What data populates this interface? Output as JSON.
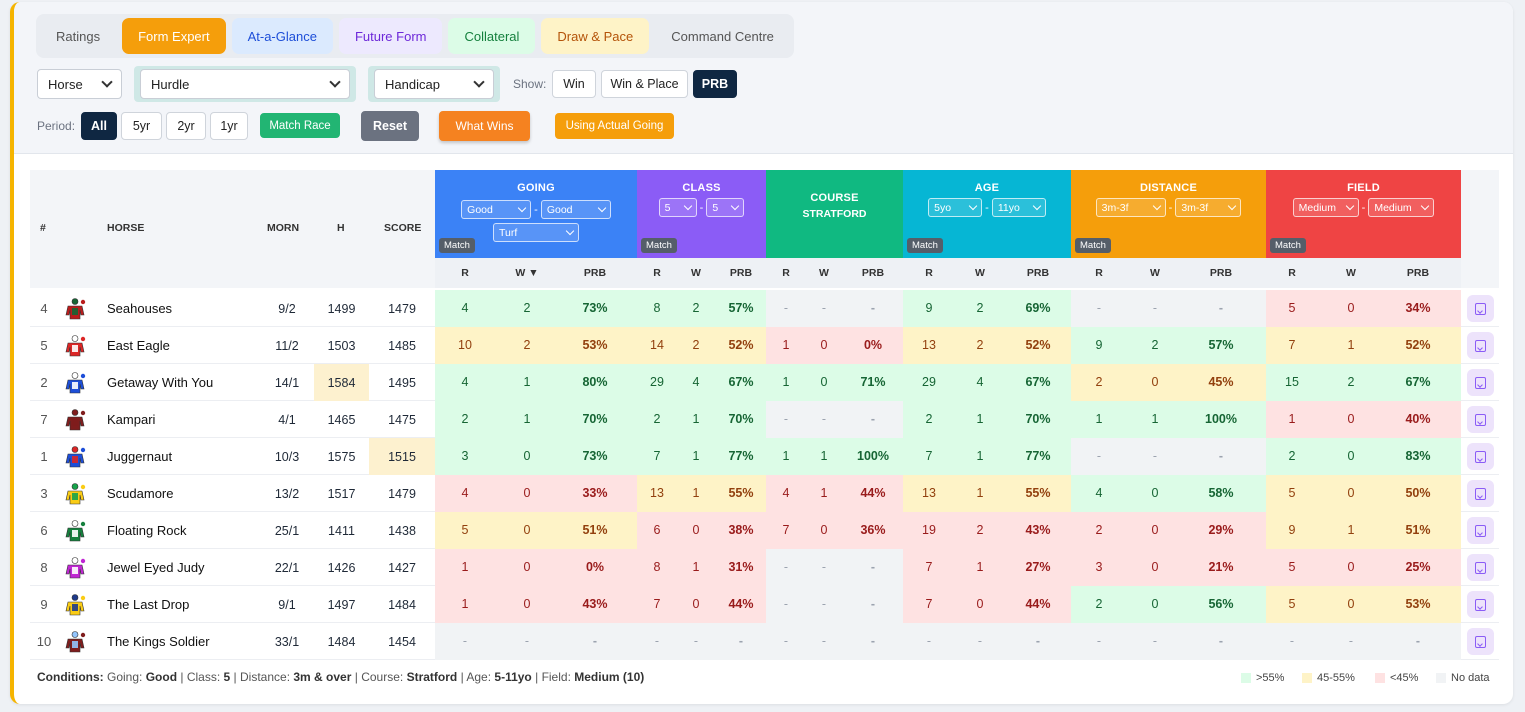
{
  "tabs": [
    "Ratings",
    "Form Expert",
    "At-a-Glance",
    "Future Form",
    "Collateral",
    "Draw & Pace",
    "Command Centre"
  ],
  "filters": {
    "subject": "Horse",
    "type": "Hurdle",
    "race": "Handicap",
    "show_label": "Show:",
    "show": [
      "Win",
      "Win & Place",
      "PRB"
    ],
    "period_label": "Period:",
    "periods": [
      "All",
      "5yr",
      "2yr",
      "1yr"
    ],
    "match_race": "Match Race",
    "reset": "Reset",
    "what_wins": "What Wins",
    "actual_going": "Using Actual Going"
  },
  "headers": {
    "num": "#",
    "horse": "HORSE",
    "morn": "MORN",
    "h": "H",
    "score": "SCORE",
    "r": "R",
    "w": "W",
    "w_sorted": "W ▼",
    "prb": "PRB",
    "match": "Match"
  },
  "groups": {
    "going": {
      "title": "GOING",
      "from": "Good",
      "to": "Good",
      "surface": "Turf",
      "color": "#3b82f6"
    },
    "class": {
      "title": "CLASS",
      "from": "5",
      "to": "5",
      "color": "#8b5cf6"
    },
    "course": {
      "title": "COURSE",
      "sub": "STRATFORD",
      "color": "#10b981"
    },
    "age": {
      "title": "AGE",
      "from": "5yo",
      "to": "11yo",
      "color": "#06b6d4"
    },
    "distance": {
      "title": "DISTANCE",
      "from": "3m-3f",
      "to": "3m-3f",
      "color": "#f59e0b"
    },
    "field": {
      "title": "FIELD",
      "from": "Medium",
      "to": "Medium",
      "color": "#ef4444"
    }
  },
  "rows": [
    {
      "num": "4",
      "horse": "Seahouses",
      "morn": "9/2",
      "h": "1499",
      "score": "1479",
      "silk": [
        "#b91c1c",
        "#166534"
      ],
      "going": [
        "4",
        "2",
        "73%"
      ],
      "class": [
        "8",
        "2",
        "57%"
      ],
      "course": [
        "-",
        "-",
        "-"
      ],
      "age": [
        "9",
        "2",
        "69%"
      ],
      "distance": [
        "-",
        "-",
        "-"
      ],
      "field": [
        "5",
        "0",
        "34%"
      ]
    },
    {
      "num": "5",
      "horse": "East Eagle",
      "morn": "11/2",
      "h": "1503",
      "score": "1485",
      "silk": [
        "#dc2626",
        "#ffffff"
      ],
      "going": [
        "10",
        "2",
        "53%"
      ],
      "class": [
        "14",
        "2",
        "52%"
      ],
      "course": [
        "1",
        "0",
        "0%"
      ],
      "age": [
        "13",
        "2",
        "52%"
      ],
      "distance": [
        "9",
        "2",
        "57%"
      ],
      "field": [
        "7",
        "1",
        "52%"
      ]
    },
    {
      "num": "2",
      "horse": "Getaway With You",
      "morn": "14/1",
      "h": "1584",
      "score": "1495",
      "silk": [
        "#1d4ed8",
        "#ffffff"
      ],
      "going": [
        "4",
        "1",
        "80%"
      ],
      "class": [
        "29",
        "4",
        "67%"
      ],
      "course": [
        "1",
        "0",
        "71%"
      ],
      "age": [
        "29",
        "4",
        "67%"
      ],
      "distance": [
        "2",
        "0",
        "45%"
      ],
      "field": [
        "15",
        "2",
        "67%"
      ]
    },
    {
      "num": "7",
      "horse": "Kampari",
      "morn": "4/1",
      "h": "1465",
      "score": "1475",
      "silk": [
        "#7f1d1d",
        "#7f1d1d"
      ],
      "going": [
        "2",
        "1",
        "70%"
      ],
      "class": [
        "2",
        "1",
        "70%"
      ],
      "course": [
        "-",
        "-",
        "-"
      ],
      "age": [
        "2",
        "1",
        "70%"
      ],
      "distance": [
        "1",
        "1",
        "100%"
      ],
      "field": [
        "1",
        "0",
        "40%"
      ]
    },
    {
      "num": "1",
      "horse": "Juggernaut",
      "morn": "10/3",
      "h": "1575",
      "score": "1515",
      "silk": [
        "#1d4ed8",
        "#dc2626"
      ],
      "going": [
        "3",
        "0",
        "73%"
      ],
      "class": [
        "7",
        "1",
        "77%"
      ],
      "course": [
        "1",
        "1",
        "100%"
      ],
      "age": [
        "7",
        "1",
        "77%"
      ],
      "distance": [
        "-",
        "-",
        "-"
      ],
      "field": [
        "2",
        "0",
        "83%"
      ]
    },
    {
      "num": "3",
      "horse": "Scudamore",
      "morn": "13/2",
      "h": "1517",
      "score": "1479",
      "silk": [
        "#facc15",
        "#16a34a"
      ],
      "going": [
        "4",
        "0",
        "33%"
      ],
      "class": [
        "13",
        "1",
        "55%"
      ],
      "course": [
        "4",
        "1",
        "44%"
      ],
      "age": [
        "13",
        "1",
        "55%"
      ],
      "distance": [
        "4",
        "0",
        "58%"
      ],
      "field": [
        "5",
        "0",
        "50%"
      ]
    },
    {
      "num": "6",
      "horse": "Floating Rock",
      "morn": "25/1",
      "h": "1411",
      "score": "1438",
      "silk": [
        "#15803d",
        "#ffffff"
      ],
      "going": [
        "5",
        "0",
        "51%"
      ],
      "class": [
        "6",
        "0",
        "38%"
      ],
      "course": [
        "7",
        "0",
        "36%"
      ],
      "age": [
        "19",
        "2",
        "43%"
      ],
      "distance": [
        "2",
        "0",
        "29%"
      ],
      "field": [
        "9",
        "1",
        "51%"
      ]
    },
    {
      "num": "8",
      "horse": "Jewel Eyed Judy",
      "morn": "22/1",
      "h": "1426",
      "score": "1427",
      "silk": [
        "#c026d3",
        "#ffffff"
      ],
      "going": [
        "1",
        "0",
        "0%"
      ],
      "class": [
        "8",
        "1",
        "31%"
      ],
      "course": [
        "-",
        "-",
        "-"
      ],
      "age": [
        "7",
        "1",
        "27%"
      ],
      "distance": [
        "3",
        "0",
        "21%"
      ],
      "field": [
        "5",
        "0",
        "25%"
      ]
    },
    {
      "num": "9",
      "horse": "The Last Drop",
      "morn": "9/1",
      "h": "1497",
      "score": "1484",
      "silk": [
        "#facc15",
        "#1e3a8a"
      ],
      "going": [
        "1",
        "0",
        "43%"
      ],
      "class": [
        "7",
        "0",
        "44%"
      ],
      "course": [
        "-",
        "-",
        "-"
      ],
      "age": [
        "7",
        "0",
        "44%"
      ],
      "distance": [
        "2",
        "0",
        "56%"
      ],
      "field": [
        "5",
        "0",
        "53%"
      ]
    },
    {
      "num": "10",
      "horse": "The Kings Soldier",
      "morn": "33/1",
      "h": "1484",
      "score": "1454",
      "silk": [
        "#7f1d1d",
        "#93c5fd"
      ],
      "going": [
        "-",
        "-",
        "-"
      ],
      "class": [
        "-",
        "-",
        "-"
      ],
      "course": [
        "-",
        "-",
        "-"
      ],
      "age": [
        "-",
        "-",
        "-"
      ],
      "distance": [
        "-",
        "-",
        "-"
      ],
      "field": [
        "-",
        "-",
        "-"
      ]
    }
  ],
  "conditions": {
    "label": "Conditions:",
    "going_k": "Going:",
    "going": "Good",
    "class_k": "Class:",
    "class": "5",
    "dist_k": "Distance:",
    "dist": "3m & over",
    "course_k": "Course:",
    "course": "Stratford",
    "age_k": "Age:",
    "age": "5-11yo",
    "field_k": "Field:",
    "field": "Medium (10)"
  },
  "legend": [
    ">55%",
    "45-55%",
    "<45%",
    "No data"
  ]
}
